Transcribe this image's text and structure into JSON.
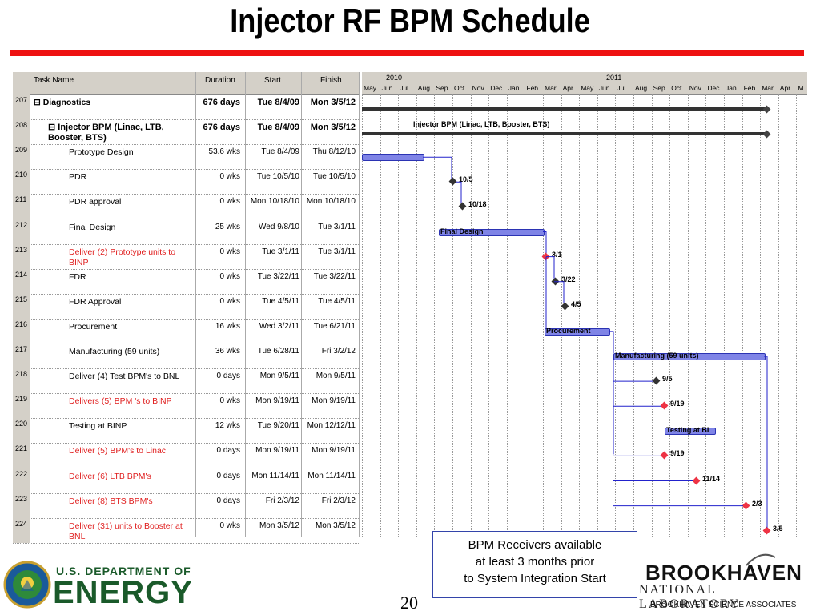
{
  "slide": {
    "title": "Injector RF BPM Schedule",
    "page_number": "20",
    "callout": [
      "BPM Receivers available",
      "at least 3 months prior",
      "to System Integration Start"
    ],
    "doe_line1": "U.S. DEPARTMENT OF",
    "doe_line2": "ENERGY",
    "bnl_line1": "BROOKHAVEN",
    "bnl_line2": "NATIONAL LABORATORY",
    "bnl_line3": "BROOKHAVEN SCIENCE ASSOCIATES"
  },
  "table": {
    "headers": {
      "name": "Task Name",
      "duration": "Duration",
      "start": "Start",
      "finish": "Finish"
    },
    "rows": [
      {
        "id": "207",
        "name": "Diagnostics",
        "duration": "676 days",
        "start": "Tue 8/4/09",
        "finish": "Mon 3/5/12",
        "style": "top"
      },
      {
        "id": "208",
        "name": "Injector BPM (Linac, LTB, Booster, BTS)",
        "duration": "676 days",
        "start": "Tue 8/4/09",
        "finish": "Mon 3/5/12",
        "style": "sub"
      },
      {
        "id": "209",
        "name": "Prototype Design",
        "duration": "53.6 wks",
        "start": "Tue 8/4/09",
        "finish": "Thu 8/12/10",
        "style": ""
      },
      {
        "id": "210",
        "name": "PDR",
        "duration": "0 wks",
        "start": "Tue 10/5/10",
        "finish": "Tue 10/5/10",
        "style": ""
      },
      {
        "id": "211",
        "name": "PDR approval",
        "duration": "0 wks",
        "start": "Mon 10/18/10",
        "finish": "Mon 10/18/10",
        "style": ""
      },
      {
        "id": "212",
        "name": "Final Design",
        "duration": "25 wks",
        "start": "Wed 9/8/10",
        "finish": "Tue 3/1/11",
        "style": ""
      },
      {
        "id": "213",
        "name": "Deliver (2) Prototype units to BINP",
        "duration": "0 wks",
        "start": "Tue 3/1/11",
        "finish": "Tue 3/1/11",
        "style": "red"
      },
      {
        "id": "214",
        "name": "FDR",
        "duration": "0 wks",
        "start": "Tue 3/22/11",
        "finish": "Tue 3/22/11",
        "style": ""
      },
      {
        "id": "215",
        "name": "FDR Approval",
        "duration": "0 wks",
        "start": "Tue 4/5/11",
        "finish": "Tue 4/5/11",
        "style": ""
      },
      {
        "id": "216",
        "name": "Procurement",
        "duration": "16 wks",
        "start": "Wed 3/2/11",
        "finish": "Tue 6/21/11",
        "style": ""
      },
      {
        "id": "217",
        "name": "Manufacturing (59 units)",
        "duration": "36 wks",
        "start": "Tue 6/28/11",
        "finish": "Fri 3/2/12",
        "style": ""
      },
      {
        "id": "218",
        "name": "Deliver (4) Test BPM's to BNL",
        "duration": "0 days",
        "start": "Mon 9/5/11",
        "finish": "Mon 9/5/11",
        "style": ""
      },
      {
        "id": "219",
        "name": "Delivers (5) BPM 's to BINP",
        "duration": "0 wks",
        "start": "Mon 9/19/11",
        "finish": "Mon 9/19/11",
        "style": "red"
      },
      {
        "id": "220",
        "name": "Testing at BINP",
        "duration": "12 wks",
        "start": "Tue 9/20/11",
        "finish": "Mon 12/12/11",
        "style": ""
      },
      {
        "id": "221",
        "name": "Deliver (5) BPM's to Linac",
        "duration": "0 days",
        "start": "Mon 9/19/11",
        "finish": "Mon 9/19/11",
        "style": "red"
      },
      {
        "id": "222",
        "name": "Deliver (6) LTB BPM's",
        "duration": "0 days",
        "start": "Mon 11/14/11",
        "finish": "Mon 11/14/11",
        "style": "red"
      },
      {
        "id": "223",
        "name": "Deliver (8) BTS BPM's",
        "duration": "0 days",
        "start": "Fri 2/3/12",
        "finish": "Fri 2/3/12",
        "style": "red"
      },
      {
        "id": "224",
        "name": "Deliver (31) units to Booster at BNL",
        "duration": "0 wks",
        "start": "Mon 3/5/12",
        "finish": "Mon 3/5/12",
        "style": "red"
      }
    ]
  },
  "gantt": {
    "years": [
      "2010",
      "2011"
    ],
    "months": [
      "May",
      "Jun",
      "Jul",
      "Aug",
      "Sep",
      "Oct",
      "Nov",
      "Dec",
      "Jan",
      "Feb",
      "Mar",
      "Apr",
      "May",
      "Jun",
      "Jul",
      "Aug",
      "Sep",
      "Oct",
      "Nov",
      "Dec",
      "Jan",
      "Feb",
      "Mar",
      "Apr",
      "M"
    ],
    "bar_labels": {
      "summary": "Injector BPM (Linac, LTB, Booster, BTS)",
      "final_design": "Final Design",
      "procurement": "Procurement",
      "manufacturing": "Manufacturing (59 units)",
      "testing": "Testing at BI"
    },
    "milestone_labels": {
      "pdr": "10/5",
      "pdr_approval": "10/18",
      "deliver_proto": "3/1",
      "fdr": "3/22",
      "fdr_approval": "4/5",
      "test_bpm": "9/5",
      "binp": "9/19",
      "linac": "9/19",
      "ltb": "11/14",
      "bts": "2/3",
      "booster": "3/5"
    },
    "colors": {
      "bar": "#7f84e6",
      "bar_border": "#2b33b3",
      "milestone_black": "#333333",
      "milestone_red": "#ee3344",
      "link": "#2222cc"
    }
  }
}
